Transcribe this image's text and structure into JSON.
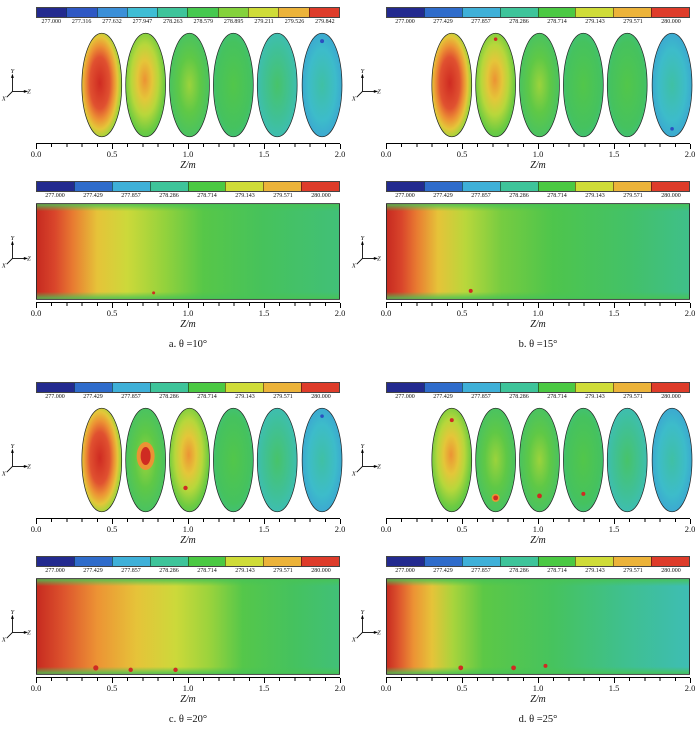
{
  "figure": {
    "triad": {
      "x": "X",
      "y": "Y",
      "z": "Z"
    },
    "panels": [
      {
        "id": "a",
        "caption": "a. θ =10°",
        "cross": {
          "colorbar_colors": [
            "#232a8f",
            "#2f58c4",
            "#3b8fd8",
            "#3fbdd4",
            "#3ec49a",
            "#46c94f",
            "#84d23c",
            "#cfdc38",
            "#ecb33a",
            "#de3c2a"
          ],
          "colorbar_ticks": [
            "277.000",
            "277.316",
            "277.632",
            "277.947",
            "278.263",
            "278.579",
            "278.895",
            "279.211",
            "279.526",
            "279.842"
          ],
          "axis_ticks": [
            "0.0",
            "0.5",
            "1.0",
            "1.5",
            "2.0"
          ],
          "axis_label": "Z/m"
        },
        "long": {
          "colorbar_colors": [
            "#232a8f",
            "#2f6ccb",
            "#3fb0d8",
            "#3ec49a",
            "#4bc943",
            "#cfdc38",
            "#ecb33a",
            "#de3c2a"
          ],
          "colorbar_ticks": [
            "277.000",
            "277.429",
            "277.857",
            "278.286",
            "278.714",
            "279.143",
            "279.571",
            "280.000"
          ],
          "axis_ticks": [
            "0.0",
            "0.5",
            "1.0",
            "1.5",
            "2.0"
          ],
          "axis_label": "Z/m"
        }
      },
      {
        "id": "b",
        "caption": "b. θ =15°",
        "cross": {
          "colorbar_colors": [
            "#232a8f",
            "#2f6ccb",
            "#3fb0d8",
            "#3ec49a",
            "#4bc943",
            "#cfdc38",
            "#ecb33a",
            "#de3c2a"
          ],
          "colorbar_ticks": [
            "277.000",
            "277.429",
            "277.857",
            "278.286",
            "278.714",
            "279.143",
            "279.571",
            "280.000"
          ],
          "axis_ticks": [
            "0.0",
            "0.5",
            "1.0",
            "1.5",
            "2.0"
          ],
          "axis_label": "Z/m"
        },
        "long": {
          "colorbar_colors": [
            "#232a8f",
            "#2f6ccb",
            "#3fb0d8",
            "#3ec49a",
            "#4bc943",
            "#cfdc38",
            "#ecb33a",
            "#de3c2a"
          ],
          "colorbar_ticks": [
            "277.000",
            "277.429",
            "277.857",
            "278.286",
            "278.714",
            "279.143",
            "279.571",
            "280.000"
          ],
          "axis_ticks": [
            "0.0",
            "0.5",
            "1.0",
            "1.5",
            "2.0"
          ],
          "axis_label": "Z/m"
        }
      },
      {
        "id": "c",
        "caption": "c. θ =20°",
        "cross": {
          "colorbar_colors": [
            "#232a8f",
            "#2f6ccb",
            "#3fb0d8",
            "#3ec49a",
            "#4bc943",
            "#cfdc38",
            "#ecb33a",
            "#de3c2a"
          ],
          "colorbar_ticks": [
            "277.000",
            "277.429",
            "277.857",
            "278.286",
            "278.714",
            "279.143",
            "279.571",
            "280.000"
          ],
          "axis_ticks": [
            "0.0",
            "0.5",
            "1.0",
            "1.5",
            "2.0"
          ],
          "axis_label": "Z/m"
        },
        "long": {
          "colorbar_colors": [
            "#232a8f",
            "#2f6ccb",
            "#3fb0d8",
            "#3ec49a",
            "#4bc943",
            "#cfdc38",
            "#ecb33a",
            "#de3c2a"
          ],
          "colorbar_ticks": [
            "277.000",
            "277.429",
            "277.857",
            "278.286",
            "278.714",
            "279.143",
            "279.571",
            "280.000"
          ],
          "axis_ticks": [
            "0.0",
            "0.5",
            "1.0",
            "1.5",
            "2.0"
          ],
          "axis_label": "Z/m"
        }
      },
      {
        "id": "d",
        "caption": "d. θ =25°",
        "cross": {
          "colorbar_colors": [
            "#232a8f",
            "#2f6ccb",
            "#3fb0d8",
            "#3ec49a",
            "#4bc943",
            "#cfdc38",
            "#ecb33a",
            "#de3c2a"
          ],
          "colorbar_ticks": [
            "277.000",
            "277.429",
            "277.857",
            "278.286",
            "278.714",
            "279.143",
            "279.571",
            "280.000"
          ],
          "axis_ticks": [
            "0.0",
            "0.5",
            "1.0",
            "1.5",
            "2.0"
          ],
          "axis_label": "Z/m"
        },
        "long": {
          "colorbar_colors": [
            "#232a8f",
            "#2f6ccb",
            "#3fb0d8",
            "#3ec49a",
            "#4bc943",
            "#cfdc38",
            "#ecb33a",
            "#de3c2a"
          ],
          "colorbar_ticks": [
            "277.000",
            "277.429",
            "277.857",
            "278.286",
            "278.714",
            "279.143",
            "279.571",
            "280.000"
          ],
          "axis_ticks": [
            "0.0",
            "0.5",
            "1.0",
            "1.5",
            "2.0"
          ],
          "axis_label": "Z/m"
        }
      }
    ]
  },
  "chart_data": [
    {
      "type": "heatmap",
      "subtype": "contour",
      "panel": "a",
      "caption": "a. θ =10°",
      "theta_deg": 10,
      "subplots": [
        {
          "name": "cross-sections",
          "slices": 6,
          "levels": [
            277.0,
            277.316,
            277.632,
            277.947,
            278.263,
            278.579,
            278.895,
            279.211,
            279.526,
            279.842
          ],
          "xlabel": "Z/m",
          "x_range": [
            0.0,
            2.0
          ],
          "x_ticks": [
            0.0,
            0.5,
            1.0,
            1.5,
            2.0
          ],
          "legend_position": "top"
        },
        {
          "name": "longitudinal-section",
          "levels": [
            277.0,
            277.429,
            277.857,
            278.286,
            278.714,
            279.143,
            279.571,
            280.0
          ],
          "xlabel": "Z/m",
          "x_range": [
            0.0,
            2.0
          ],
          "x_ticks": [
            0.0,
            0.5,
            1.0,
            1.5,
            2.0
          ],
          "legend_position": "top"
        }
      ]
    },
    {
      "type": "heatmap",
      "subtype": "contour",
      "panel": "b",
      "caption": "b. θ =15°",
      "theta_deg": 15,
      "subplots": [
        {
          "name": "cross-sections",
          "slices": 6,
          "levels": [
            277.0,
            277.429,
            277.857,
            278.286,
            278.714,
            279.143,
            279.571,
            280.0
          ],
          "xlabel": "Z/m",
          "x_range": [
            0.0,
            2.0
          ],
          "x_ticks": [
            0.0,
            0.5,
            1.0,
            1.5,
            2.0
          ],
          "legend_position": "top"
        },
        {
          "name": "longitudinal-section",
          "levels": [
            277.0,
            277.429,
            277.857,
            278.286,
            278.714,
            279.143,
            279.571,
            280.0
          ],
          "xlabel": "Z/m",
          "x_range": [
            0.0,
            2.0
          ],
          "x_ticks": [
            0.0,
            0.5,
            1.0,
            1.5,
            2.0
          ],
          "legend_position": "top"
        }
      ]
    },
    {
      "type": "heatmap",
      "subtype": "contour",
      "panel": "c",
      "caption": "c. θ =20°",
      "theta_deg": 20,
      "subplots": [
        {
          "name": "cross-sections",
          "slices": 6,
          "levels": [
            277.0,
            277.429,
            277.857,
            278.286,
            278.714,
            279.143,
            279.571,
            280.0
          ],
          "xlabel": "Z/m",
          "x_range": [
            0.0,
            2.0
          ],
          "x_ticks": [
            0.0,
            0.5,
            1.0,
            1.5,
            2.0
          ],
          "legend_position": "top"
        },
        {
          "name": "longitudinal-section",
          "levels": [
            277.0,
            277.429,
            277.857,
            278.286,
            278.714,
            279.143,
            279.571,
            280.0
          ],
          "xlabel": "Z/m",
          "x_range": [
            0.0,
            2.0
          ],
          "x_ticks": [
            0.0,
            0.5,
            1.0,
            1.5,
            2.0
          ],
          "legend_position": "top"
        }
      ]
    },
    {
      "type": "heatmap",
      "subtype": "contour",
      "panel": "d",
      "caption": "d. θ =25°",
      "theta_deg": 25,
      "subplots": [
        {
          "name": "cross-sections",
          "slices": 6,
          "levels": [
            277.0,
            277.429,
            277.857,
            278.286,
            278.714,
            279.143,
            279.571,
            280.0
          ],
          "xlabel": "Z/m",
          "x_range": [
            0.0,
            2.0
          ],
          "x_ticks": [
            0.0,
            0.5,
            1.0,
            1.5,
            2.0
          ],
          "legend_position": "top"
        },
        {
          "name": "longitudinal-section",
          "levels": [
            277.0,
            277.429,
            277.857,
            278.286,
            278.714,
            279.143,
            279.571,
            280.0
          ],
          "xlabel": "Z/m",
          "x_range": [
            0.0,
            2.0
          ],
          "x_ticks": [
            0.0,
            0.5,
            1.0,
            1.5,
            2.0
          ],
          "legend_position": "top"
        }
      ]
    }
  ]
}
